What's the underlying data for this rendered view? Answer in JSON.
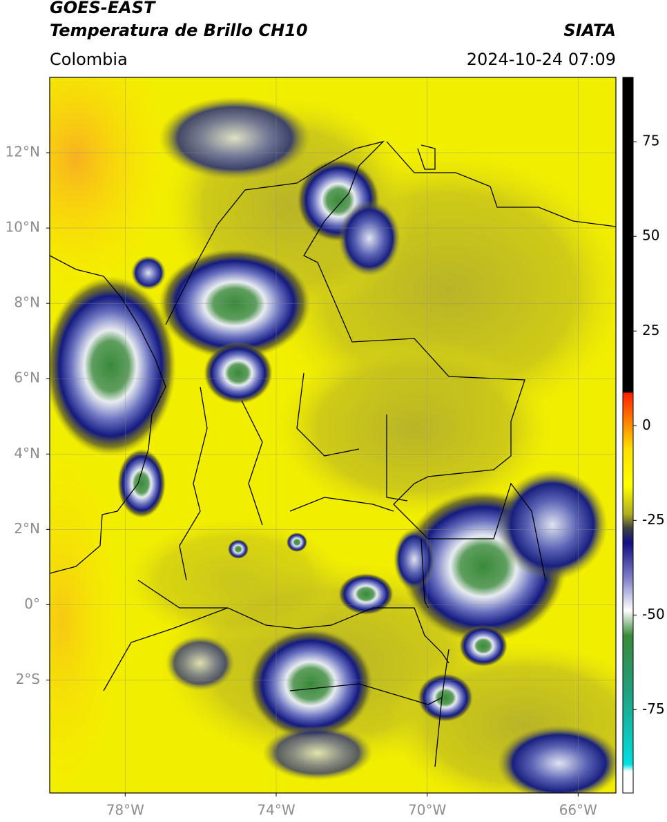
{
  "header": {
    "title_line1": "GOES-EAST",
    "title_line2": "Temperatura de Brillo CH10",
    "region": "Colombia",
    "agency": "SIATA",
    "datetime": "2024-10-24 07:09"
  },
  "map": {
    "xlim": [
      -80,
      -65
    ],
    "ylim": [
      -5,
      14
    ],
    "xticks": [
      {
        "value": -78,
        "label": "78°W"
      },
      {
        "value": -74,
        "label": "74°W"
      },
      {
        "value": -70,
        "label": "70°W"
      },
      {
        "value": -66,
        "label": "66°W"
      }
    ],
    "yticks": [
      {
        "value": 12,
        "label": "12°N"
      },
      {
        "value": 10,
        "label": "10°N"
      },
      {
        "value": 8,
        "label": "8°N"
      },
      {
        "value": 6,
        "label": "6°N"
      },
      {
        "value": 4,
        "label": "4°N"
      },
      {
        "value": 2,
        "label": "2°N"
      },
      {
        "value": 0,
        "label": "0°"
      },
      {
        "value": -2,
        "label": "2°S"
      }
    ],
    "grid": true
  },
  "colorbar": {
    "lim": [
      -97,
      92
    ],
    "ticks": [
      75,
      50,
      25,
      0,
      -25,
      -50,
      -75
    ]
  }
}
